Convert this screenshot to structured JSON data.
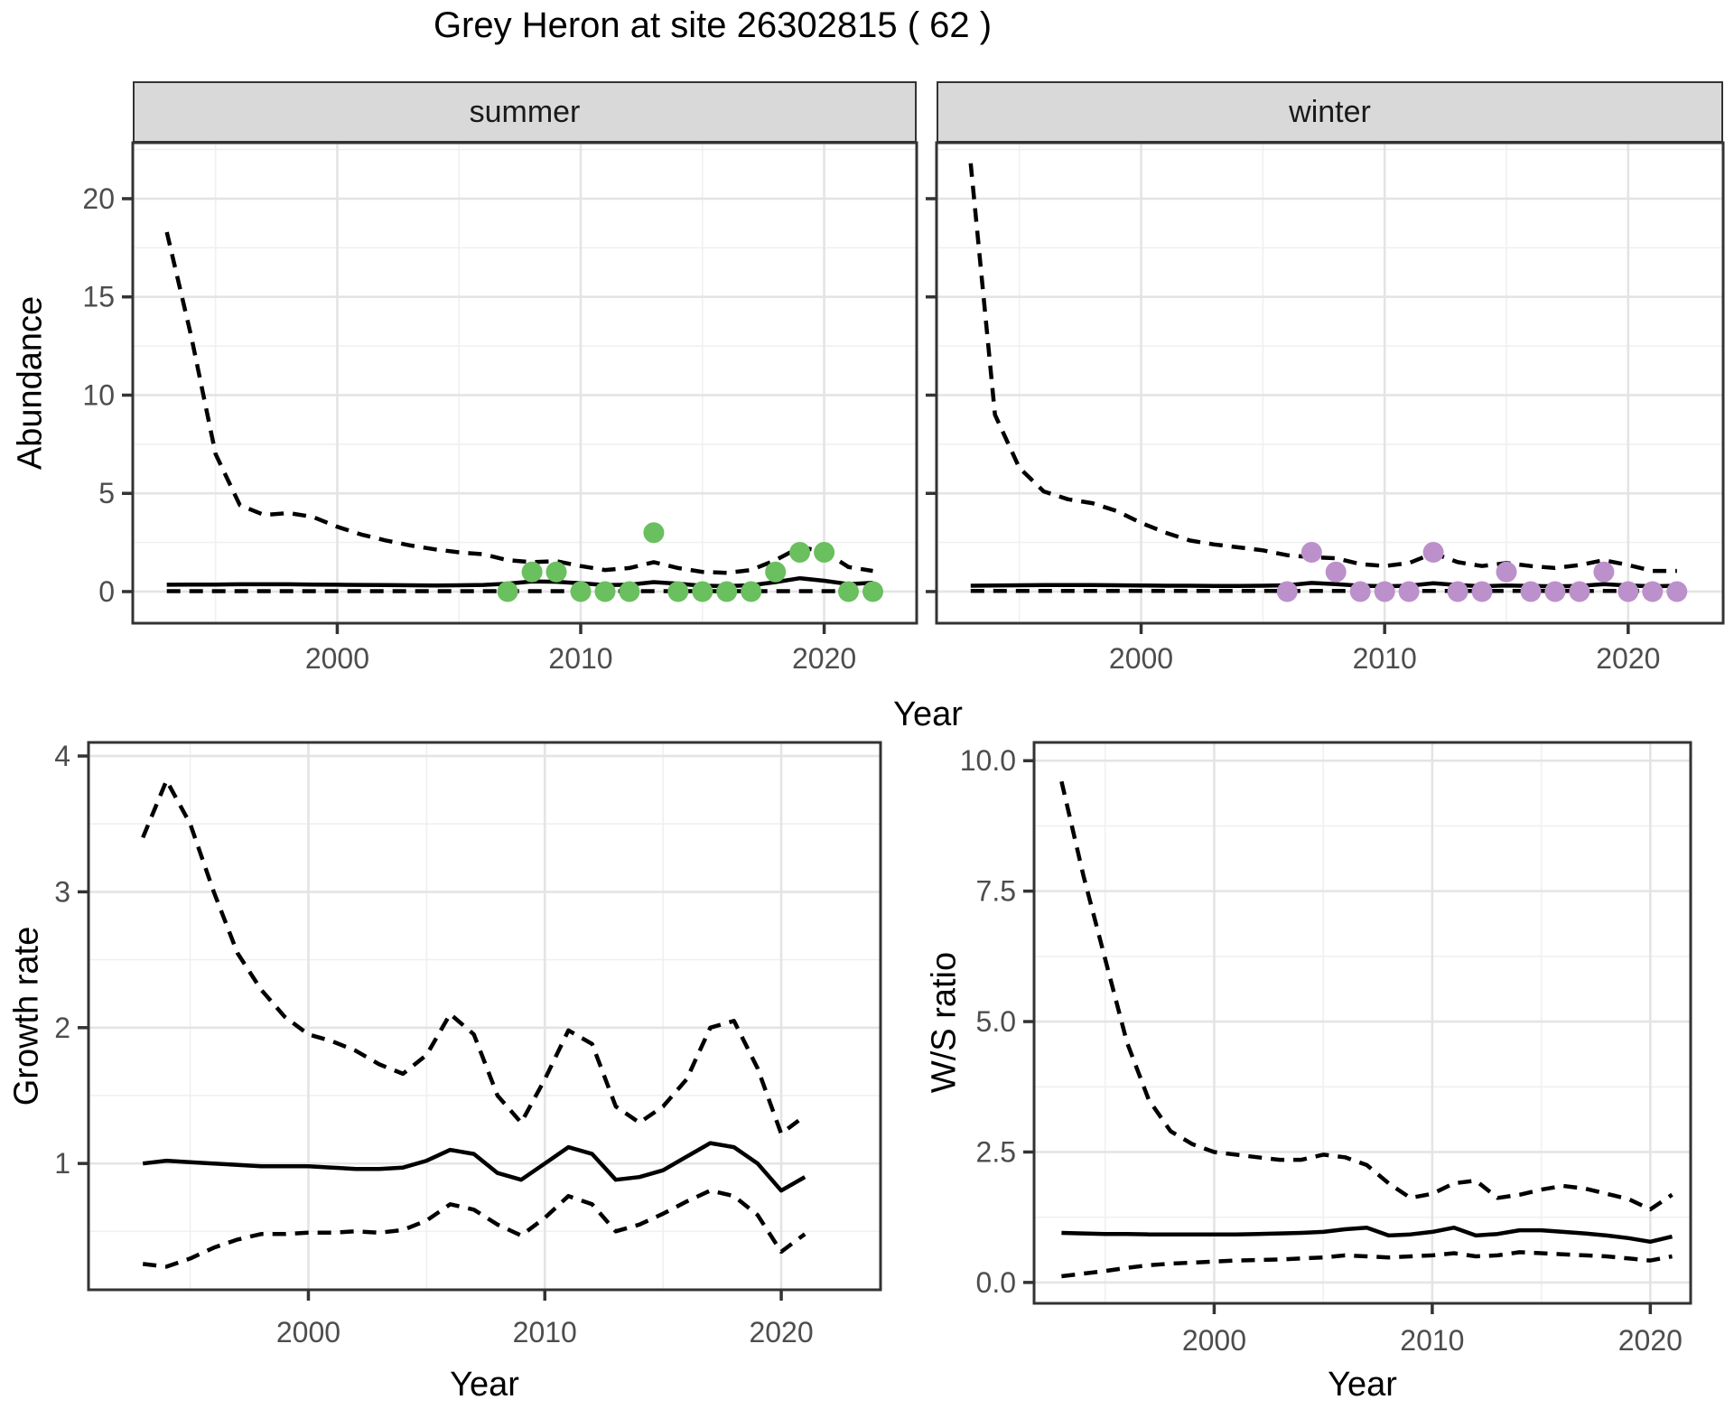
{
  "title": "Grey Heron at site 26302815 ( 62 )",
  "axes": {
    "x_title_top": "Year",
    "x_title_growth": "Year",
    "x_title_ws": "Year",
    "y_title_abundance": "Abundance",
    "y_title_growth": "Growth rate",
    "y_title_ws": "W/S ratio"
  },
  "facets": {
    "summer_label": "summer",
    "winter_label": "winter"
  },
  "colors": {
    "summer_point": "#6abf5e",
    "winter_point": "#bc90ca",
    "line": "#000000",
    "strip_bg": "#d9d9d9",
    "panel_border": "#333333",
    "grid_major": "#e4e4e4",
    "grid_minor": "#f0f0f0",
    "tick_text": "#4d4d4d"
  },
  "chart_data": [
    {
      "id": "abundance-summer",
      "type": "line",
      "facet_label": "summer",
      "xlabel": "Year",
      "ylabel": "Abundance",
      "x_domain": [
        1991.6,
        2023.8
      ],
      "y_domain": [
        -1.61,
        22.85
      ],
      "x_ticks": [
        2000,
        2010,
        2020
      ],
      "x_tick_labels": [
        "2000",
        "2010",
        "2020"
      ],
      "x_minor": [
        1995,
        2005,
        2015
      ],
      "y_ticks": [
        0,
        5,
        10,
        15,
        20
      ],
      "y_tick_labels": [
        "0",
        "5",
        "10",
        "15",
        "20"
      ],
      "y_minor": [
        2.5,
        7.5,
        12.5,
        17.5,
        22.5
      ],
      "x": [
        1993,
        1994,
        1995,
        1996,
        1997,
        1998,
        1999,
        2000,
        2001,
        2002,
        2003,
        2004,
        2005,
        2006,
        2007,
        2008,
        2009,
        2010,
        2011,
        2012,
        2013,
        2014,
        2015,
        2016,
        2017,
        2018,
        2019,
        2020,
        2021,
        2022
      ],
      "series": [
        {
          "name": "upper_ci",
          "style": "dashed",
          "values": [
            18.3,
            13.0,
            7.0,
            4.4,
            3.9,
            4.0,
            3.8,
            3.3,
            2.9,
            2.6,
            2.35,
            2.15,
            2.0,
            1.9,
            1.6,
            1.5,
            1.55,
            1.3,
            1.1,
            1.2,
            1.5,
            1.2,
            1.0,
            0.95,
            1.1,
            1.6,
            2.25,
            2.05,
            1.25,
            1.05
          ]
        },
        {
          "name": "lower_ci",
          "style": "dashed",
          "values": [
            0.02,
            0.02,
            0.02,
            0.02,
            0.02,
            0.02,
            0.02,
            0.02,
            0.02,
            0.02,
            0.02,
            0.02,
            0.02,
            0.02,
            0.02,
            0.02,
            0.02,
            0.02,
            0.02,
            0.02,
            0.02,
            0.02,
            0.02,
            0.02,
            0.02,
            0.02,
            0.02,
            0.02,
            0.02,
            0.02
          ]
        },
        {
          "name": "mean",
          "style": "solid",
          "values": [
            0.35,
            0.36,
            0.36,
            0.37,
            0.37,
            0.37,
            0.36,
            0.35,
            0.34,
            0.33,
            0.32,
            0.31,
            0.32,
            0.34,
            0.4,
            0.52,
            0.5,
            0.42,
            0.33,
            0.35,
            0.48,
            0.4,
            0.3,
            0.28,
            0.32,
            0.48,
            0.68,
            0.55,
            0.38,
            0.45
          ]
        }
      ],
      "points": {
        "color_key": "summer_point",
        "data": [
          [
            2007,
            0
          ],
          [
            2008,
            1
          ],
          [
            2009,
            1
          ],
          [
            2010,
            0
          ],
          [
            2011,
            0
          ],
          [
            2012,
            0
          ],
          [
            2013,
            3
          ],
          [
            2014,
            0
          ],
          [
            2015,
            0
          ],
          [
            2016,
            0
          ],
          [
            2017,
            0
          ],
          [
            2018,
            1
          ],
          [
            2019,
            2
          ],
          [
            2020,
            2
          ],
          [
            2021,
            0
          ],
          [
            2022,
            0
          ]
        ]
      }
    },
    {
      "id": "abundance-winter",
      "type": "line",
      "facet_label": "winter",
      "xlabel": "Year",
      "ylabel": "Abundance",
      "x_domain": [
        1991.6,
        2023.9
      ],
      "y_domain": [
        -1.61,
        22.85
      ],
      "x_ticks": [
        2000,
        2010,
        2020
      ],
      "x_tick_labels": [
        "2000",
        "2010",
        "2020"
      ],
      "x_minor": [
        1995,
        2005,
        2015
      ],
      "y_ticks": [
        0,
        5,
        10,
        15,
        20
      ],
      "y_tick_labels": [],
      "y_minor": [
        2.5,
        7.5,
        12.5,
        17.5,
        22.5
      ],
      "x": [
        1993,
        1994,
        1995,
        1996,
        1997,
        1998,
        1999,
        2000,
        2001,
        2002,
        2003,
        2004,
        2005,
        2006,
        2007,
        2008,
        2009,
        2010,
        2011,
        2012,
        2013,
        2014,
        2015,
        2016,
        2017,
        2018,
        2019,
        2020,
        2021,
        2022
      ],
      "series": [
        {
          "name": "upper_ci",
          "style": "dashed",
          "values": [
            21.8,
            9.0,
            6.3,
            5.1,
            4.7,
            4.5,
            4.1,
            3.5,
            3.0,
            2.6,
            2.4,
            2.25,
            2.1,
            1.85,
            1.75,
            1.7,
            1.4,
            1.3,
            1.45,
            1.95,
            1.5,
            1.3,
            1.45,
            1.3,
            1.2,
            1.35,
            1.6,
            1.35,
            1.05,
            1.05
          ]
        },
        {
          "name": "lower_ci",
          "style": "dashed",
          "values": [
            0.03,
            0.03,
            0.03,
            0.03,
            0.03,
            0.03,
            0.03,
            0.03,
            0.03,
            0.03,
            0.03,
            0.03,
            0.03,
            0.03,
            0.03,
            0.03,
            0.03,
            0.03,
            0.03,
            0.03,
            0.03,
            0.03,
            0.03,
            0.03,
            0.03,
            0.03,
            0.03,
            0.03,
            0.03,
            0.03
          ]
        },
        {
          "name": "mean",
          "style": "solid",
          "values": [
            0.3,
            0.31,
            0.32,
            0.33,
            0.33,
            0.33,
            0.32,
            0.31,
            0.3,
            0.3,
            0.29,
            0.29,
            0.3,
            0.32,
            0.44,
            0.38,
            0.3,
            0.27,
            0.3,
            0.42,
            0.33,
            0.27,
            0.31,
            0.29,
            0.27,
            0.29,
            0.38,
            0.31,
            0.27,
            0.3
          ]
        }
      ],
      "points": {
        "color_key": "winter_point",
        "data": [
          [
            2006,
            0
          ],
          [
            2007,
            2
          ],
          [
            2008,
            1
          ],
          [
            2009,
            0
          ],
          [
            2010,
            0
          ],
          [
            2011,
            0
          ],
          [
            2012,
            2
          ],
          [
            2013,
            0
          ],
          [
            2014,
            0
          ],
          [
            2015,
            1
          ],
          [
            2016,
            0
          ],
          [
            2017,
            0
          ],
          [
            2018,
            0
          ],
          [
            2019,
            1
          ],
          [
            2020,
            0
          ],
          [
            2021,
            0
          ],
          [
            2022,
            0
          ]
        ]
      }
    },
    {
      "id": "growth-rate",
      "type": "line",
      "facet_label": "",
      "xlabel": "Year",
      "ylabel": "Growth rate",
      "x_domain": [
        1990.7,
        2024.2
      ],
      "y_domain": [
        0.07,
        4.1
      ],
      "x_ticks": [
        2000,
        2010,
        2020
      ],
      "x_tick_labels": [
        "2000",
        "2010",
        "2020"
      ],
      "x_minor": [
        1995,
        2005,
        2015
      ],
      "y_ticks": [
        1,
        2,
        3,
        4
      ],
      "y_tick_labels": [
        "1",
        "2",
        "3",
        "4"
      ],
      "y_minor": [
        0.5,
        1.5,
        2.5,
        3.5
      ],
      "x": [
        1993,
        1994,
        1995,
        1996,
        1997,
        1998,
        1999,
        2000,
        2001,
        2002,
        2003,
        2004,
        2005,
        2006,
        2007,
        2008,
        2009,
        2010,
        2011,
        2012,
        2013,
        2014,
        2015,
        2016,
        2017,
        2018,
        2019,
        2020,
        2021
      ],
      "series": [
        {
          "name": "upper_ci",
          "style": "dashed",
          "values": [
            3.4,
            3.82,
            3.5,
            3.0,
            2.55,
            2.28,
            2.08,
            1.95,
            1.9,
            1.83,
            1.73,
            1.66,
            1.8,
            2.1,
            1.95,
            1.5,
            1.3,
            1.62,
            1.98,
            1.88,
            1.42,
            1.3,
            1.42,
            1.62,
            2.0,
            2.05,
            1.7,
            1.22,
            1.35
          ]
        },
        {
          "name": "lower_ci",
          "style": "dashed",
          "values": [
            0.26,
            0.24,
            0.3,
            0.38,
            0.44,
            0.48,
            0.48,
            0.49,
            0.49,
            0.5,
            0.49,
            0.51,
            0.58,
            0.7,
            0.66,
            0.55,
            0.47,
            0.6,
            0.76,
            0.7,
            0.5,
            0.55,
            0.63,
            0.72,
            0.8,
            0.76,
            0.62,
            0.35,
            0.48
          ]
        },
        {
          "name": "mean",
          "style": "solid",
          "values": [
            1.0,
            1.02,
            1.01,
            1.0,
            0.99,
            0.98,
            0.98,
            0.98,
            0.97,
            0.96,
            0.96,
            0.97,
            1.02,
            1.1,
            1.07,
            0.93,
            0.88,
            1.0,
            1.12,
            1.07,
            0.88,
            0.9,
            0.95,
            1.05,
            1.15,
            1.12,
            1.0,
            0.8,
            0.9
          ]
        }
      ],
      "points": null
    },
    {
      "id": "ws-ratio",
      "type": "line",
      "facet_label": "",
      "xlabel": "Year",
      "ylabel": "W/S ratio",
      "x_domain": [
        1991.74,
        2021.85
      ],
      "y_domain": [
        -0.4,
        10.35
      ],
      "x_ticks": [
        2000,
        2010,
        2020
      ],
      "x_tick_labels": [
        "2000",
        "2010",
        "2020"
      ],
      "x_minor": [
        1995,
        2005,
        2015
      ],
      "y_ticks": [
        0,
        2.5,
        5,
        7.5,
        10
      ],
      "y_tick_labels": [
        "0.0",
        "2.5",
        "5.0",
        "7.5",
        "10.0"
      ],
      "y_minor": [
        1.25,
        3.75,
        6.25,
        8.75
      ],
      "x": [
        1993,
        1994,
        1995,
        1996,
        1997,
        1998,
        1999,
        2000,
        2001,
        2002,
        2003,
        2004,
        2005,
        2006,
        2007,
        2008,
        2009,
        2010,
        2011,
        2012,
        2013,
        2014,
        2015,
        2016,
        2017,
        2018,
        2019,
        2020,
        2021
      ],
      "series": [
        {
          "name": "upper_ci",
          "style": "dashed",
          "values": [
            9.6,
            7.8,
            6.2,
            4.6,
            3.5,
            2.9,
            2.65,
            2.5,
            2.45,
            2.4,
            2.35,
            2.35,
            2.45,
            2.4,
            2.25,
            1.9,
            1.62,
            1.7,
            1.9,
            1.95,
            1.62,
            1.68,
            1.78,
            1.85,
            1.8,
            1.7,
            1.6,
            1.4,
            1.68
          ]
        },
        {
          "name": "lower_ci",
          "style": "dashed",
          "values": [
            0.12,
            0.17,
            0.22,
            0.28,
            0.33,
            0.36,
            0.38,
            0.4,
            0.42,
            0.43,
            0.44,
            0.46,
            0.48,
            0.52,
            0.5,
            0.48,
            0.5,
            0.52,
            0.56,
            0.5,
            0.52,
            0.58,
            0.56,
            0.54,
            0.52,
            0.5,
            0.46,
            0.42,
            0.5
          ]
        },
        {
          "name": "mean",
          "style": "solid",
          "values": [
            0.95,
            0.94,
            0.93,
            0.93,
            0.92,
            0.92,
            0.92,
            0.92,
            0.92,
            0.93,
            0.94,
            0.95,
            0.97,
            1.02,
            1.05,
            0.9,
            0.92,
            0.97,
            1.05,
            0.9,
            0.93,
            1.0,
            1.0,
            0.97,
            0.94,
            0.9,
            0.85,
            0.78,
            0.88
          ]
        }
      ],
      "points": null
    }
  ]
}
